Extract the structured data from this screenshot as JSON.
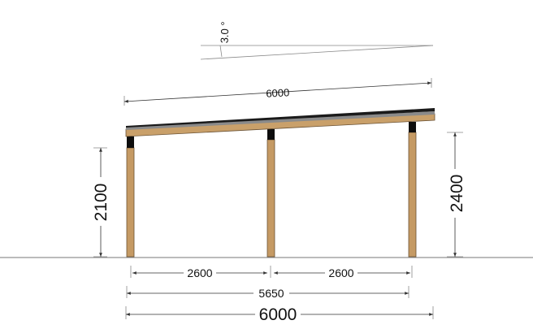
{
  "diagram": {
    "angle_label": "3.0 °",
    "roof_length_label": "6000",
    "left_height_label": "2100",
    "right_height_label": "2400",
    "span_left_label": "2600",
    "span_right_label": "2600",
    "posts_width_label": "5650",
    "total_width_label": "6000"
  },
  "colors": {
    "timber": "#c59a64",
    "roofing": "#1a1a1a",
    "lines": "#333333"
  }
}
